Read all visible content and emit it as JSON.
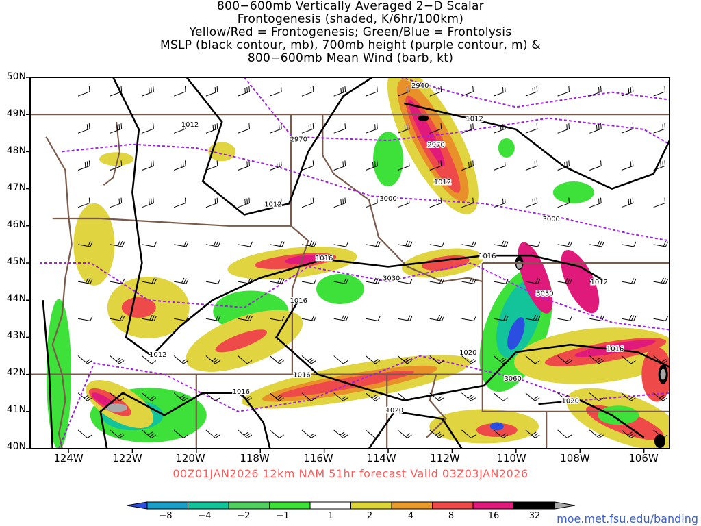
{
  "title_lines": [
    "800−600mb Vertically Averaged 2−D Scalar",
    "Frontogenesis (shaded, K/6hr/100km)",
    "Yellow/Red = Frontogenesis;  Green/Blue = Frontolysis",
    "MSLP (black contour, mb), 700mb height (purple contour, m) &",
    "800−600mb Mean Wind (barb, kt)"
  ],
  "lat_labels": [
    "50N",
    "49N",
    "48N",
    "47N",
    "46N",
    "45N",
    "44N",
    "43N",
    "42N",
    "41N",
    "40N"
  ],
  "lon_labels": [
    "124W",
    "122W",
    "120W",
    "118W",
    "116W",
    "114W",
    "112W",
    "110W",
    "108W",
    "106W"
  ],
  "mslp_labels": [
    {
      "text": "1012",
      "lon": -120.2,
      "lat": 48.75
    },
    {
      "text": "1012",
      "lon": -117.6,
      "lat": 46.6
    },
    {
      "text": "1012",
      "lon": -111.3,
      "lat": 48.9
    },
    {
      "text": "1012",
      "lon": -112.3,
      "lat": 47.2
    },
    {
      "text": "1016",
      "lon": -116.0,
      "lat": 45.15
    },
    {
      "text": "1016",
      "lon": -116.8,
      "lat": 44.0
    },
    {
      "text": "1016",
      "lon": -110.9,
      "lat": 45.2
    },
    {
      "text": "1012",
      "lon": -107.4,
      "lat": 44.5
    },
    {
      "text": "1012",
      "lon": -121.2,
      "lat": 42.55
    },
    {
      "text": "1016",
      "lon": -118.6,
      "lat": 41.55
    },
    {
      "text": "1016",
      "lon": -116.7,
      "lat": 42.0
    },
    {
      "text": "1020",
      "lon": -111.5,
      "lat": 42.6
    },
    {
      "text": "1020",
      "lon": -113.8,
      "lat": 41.05
    },
    {
      "text": "1016",
      "lon": -106.9,
      "lat": 42.7
    },
    {
      "text": "1020",
      "lon": -108.3,
      "lat": 41.3
    }
  ],
  "height_labels": [
    {
      "text": "2940",
      "lon": -113.0,
      "lat": 49.8
    },
    {
      "text": "2970",
      "lon": -116.8,
      "lat": 48.35
    },
    {
      "text": "2970",
      "lon": -112.5,
      "lat": 48.2
    },
    {
      "text": "3000",
      "lon": -114.0,
      "lat": 46.75
    },
    {
      "text": "3000",
      "lon": -108.9,
      "lat": 46.2
    },
    {
      "text": "3030",
      "lon": -113.9,
      "lat": 44.6
    },
    {
      "text": "3030",
      "lon": -109.1,
      "lat": 44.2
    },
    {
      "text": "3060",
      "lon": -110.1,
      "lat": 41.9
    }
  ],
  "colorbar": {
    "ticks": [
      "−8",
      "−4",
      "−2",
      "−1",
      "1",
      "2",
      "4",
      "8",
      "16",
      "32"
    ],
    "colors": [
      "#2a4fe0",
      "#1aa0c8",
      "#13c39a",
      "#4fd060",
      "#3ee03a",
      "#ffffff",
      "#dcd53a",
      "#e89a2c",
      "#ef4a4a",
      "#e01a7a",
      "#000000",
      "#a8a8a8"
    ]
  },
  "footer": "00Z01JAN2026 12km NAM 51hr forecast Valid 03Z03JAN2026",
  "credit": "moe.met.fsu.edu/banding"
}
